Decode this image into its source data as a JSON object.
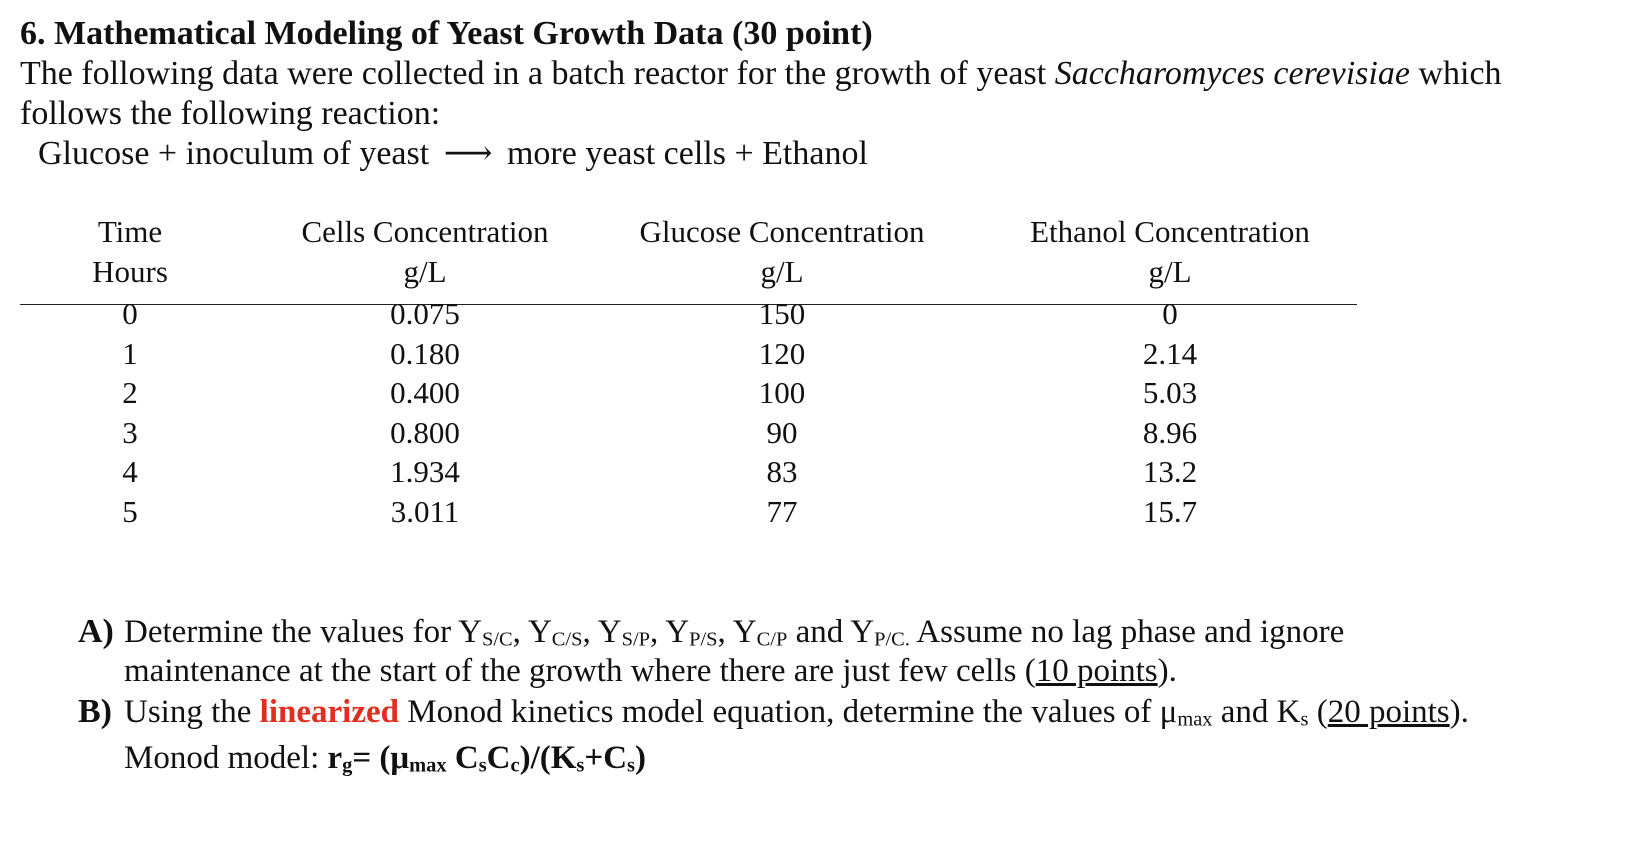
{
  "title": "6.  Mathematical Modeling of Yeast Growth Data (30 point)",
  "intro_line1": {
    "before": "The following data were collected in a batch reactor for the growth of yeast ",
    "species": "Saccharomyces cerevisiae",
    "after": " which"
  },
  "intro_line2": "follows the following reaction:",
  "reaction": {
    "left": "Glucose + inoculum of yeast",
    "arrow": "⟶",
    "right": "more yeast cells + Ethanol"
  },
  "table": {
    "headers": [
      {
        "name": "Time",
        "unit": "Hours"
      },
      {
        "name": "Cells Concentration",
        "unit": "g/L"
      },
      {
        "name": "Glucose Concentration",
        "unit": "g/L"
      },
      {
        "name": "Ethanol Concentration",
        "unit": "g/L"
      }
    ],
    "rows": [
      [
        "0",
        "0.075",
        "150",
        "0"
      ],
      [
        "1",
        "0.180",
        "120",
        "2.14"
      ],
      [
        "2",
        "0.400",
        "100",
        "5.03"
      ],
      [
        "3",
        "0.800",
        "90",
        "8.96"
      ],
      [
        "4",
        "1.934",
        "83",
        "13.2"
      ],
      [
        "5",
        "3.011",
        "77",
        "15.7"
      ]
    ]
  },
  "part_a": {
    "label": "A)",
    "text1": "Determine the values for Y",
    "s1": "S/C",
    "t2": ", Y",
    "s2": "C/S",
    "t3": ", Y",
    "s3": "S/P",
    "t4": ", Y",
    "s4": "P/S",
    "t5": ", Y",
    "s5": "C/P",
    "t6": " and Y",
    "s6": "P/C.",
    "t7": " Assume no lag phase and ignore",
    "line2": "maintenance at the start of the growth where there are just few cells (",
    "points": "10 points",
    "close": ")."
  },
  "part_b": {
    "label": "B)",
    "text1": "Using the ",
    "highlight": "linearized",
    "text2": " Monod kinetics model equation, determine the values of μ",
    "sub_max": "max",
    "text3": " and K",
    "sub_s": "s",
    "text4": " (",
    "points": "20 points",
    "close": ").",
    "model_label": "Monod model: ",
    "model_eq": "r",
    "eq_sub_g": "g",
    "eq_part2": "= (μ",
    "eq_sub_max": "max",
    "eq_part3": " C",
    "eq_sub_s1": "s",
    "eq_part4": "C",
    "eq_sub_c": "c",
    "eq_part5": ")/(K",
    "eq_sub_s2": "s",
    "eq_part6": "+C",
    "eq_sub_s3": "s",
    "eq_part7": ")"
  }
}
